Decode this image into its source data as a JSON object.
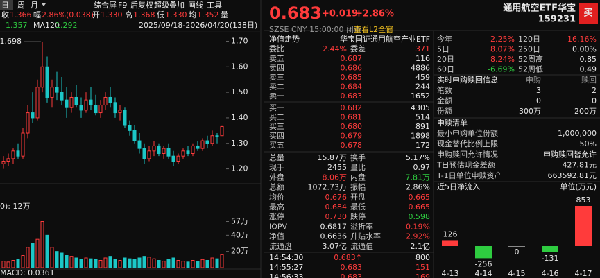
{
  "toolbar": {
    "periods": [
      "日",
      "周",
      "月"
    ],
    "menu": [
      "综合屏",
      "F9",
      "后复权",
      "超级叠加",
      "画线",
      "工具"
    ]
  },
  "quote_bar": [
    [
      "收",
      "1.366"
    ],
    [
      "幅",
      "2.86%(0.038)"
    ],
    [
      "开",
      "1.330"
    ],
    [
      "高",
      "1.368"
    ],
    [
      "低",
      "1.330"
    ],
    [
      "均",
      "1.352"
    ],
    [
      "量"
    ]
  ],
  "ma_bar": [
    "1.357",
    "MA120",
    "1.292"
  ],
  "range": "2025/09/18-2026/04/20(138日)",
  "kline": {
    "type": "candlestick",
    "high_label": "1.698",
    "ylim": [
      1.15,
      1.78
    ],
    "yticks": [
      {
        "value": 1.7,
        "label": "1.70"
      },
      {
        "value": 1.6,
        "label": "1.60"
      },
      {
        "value": 1.5,
        "label": "1.50"
      },
      {
        "value": 1.4,
        "label": "1.40"
      },
      {
        "value": 1.3,
        "label": "1.30"
      },
      {
        "value": 1.2,
        "label": "1.20"
      }
    ],
    "candles": [
      [
        1.22,
        1.25,
        1.2,
        1.23
      ],
      [
        1.23,
        1.26,
        1.21,
        1.24
      ],
      [
        1.24,
        1.28,
        1.22,
        1.27
      ],
      [
        1.27,
        1.3,
        1.24,
        1.25
      ],
      [
        1.25,
        1.36,
        1.24,
        1.34
      ],
      [
        1.34,
        1.45,
        1.32,
        1.42
      ],
      [
        1.42,
        1.5,
        1.38,
        1.4
      ],
      [
        1.4,
        1.55,
        1.39,
        1.52
      ],
      [
        1.52,
        1.698,
        1.5,
        1.6
      ],
      [
        1.6,
        1.64,
        1.46,
        1.48
      ],
      [
        1.48,
        1.55,
        1.44,
        1.52
      ],
      [
        1.52,
        1.58,
        1.47,
        1.5
      ],
      [
        1.5,
        1.56,
        1.45,
        1.47
      ],
      [
        1.47,
        1.52,
        1.4,
        1.44
      ],
      [
        1.44,
        1.5,
        1.42,
        1.48
      ],
      [
        1.48,
        1.53,
        1.44,
        1.45
      ],
      [
        1.45,
        1.48,
        1.4,
        1.43
      ],
      [
        1.43,
        1.5,
        1.42,
        1.47
      ],
      [
        1.47,
        1.52,
        1.43,
        1.45
      ],
      [
        1.45,
        1.49,
        1.41,
        1.42
      ],
      [
        1.42,
        1.47,
        1.4,
        1.45
      ],
      [
        1.45,
        1.5,
        1.43,
        1.48
      ],
      [
        1.48,
        1.52,
        1.44,
        1.46
      ],
      [
        1.46,
        1.48,
        1.4,
        1.42
      ],
      [
        1.42,
        1.45,
        1.39,
        1.43
      ],
      [
        1.43,
        1.44,
        1.36,
        1.37
      ],
      [
        1.37,
        1.39,
        1.33,
        1.35
      ],
      [
        1.35,
        1.37,
        1.3,
        1.31
      ],
      [
        1.31,
        1.34,
        1.26,
        1.28
      ],
      [
        1.28,
        1.3,
        1.22,
        1.24
      ],
      [
        1.24,
        1.29,
        1.23,
        1.27
      ],
      [
        1.27,
        1.31,
        1.25,
        1.29
      ],
      [
        1.29,
        1.3,
        1.25,
        1.26
      ],
      [
        1.26,
        1.29,
        1.24,
        1.28
      ],
      [
        1.28,
        1.3,
        1.24,
        1.25
      ],
      [
        1.25,
        1.27,
        1.21,
        1.23
      ],
      [
        1.23,
        1.26,
        1.22,
        1.25
      ],
      [
        1.25,
        1.28,
        1.24,
        1.27
      ],
      [
        1.27,
        1.29,
        1.25,
        1.26
      ],
      [
        1.26,
        1.3,
        1.25,
        1.29
      ],
      [
        1.29,
        1.31,
        1.27,
        1.28
      ],
      [
        1.28,
        1.32,
        1.27,
        1.31
      ],
      [
        1.31,
        1.33,
        1.28,
        1.3
      ],
      [
        1.3,
        1.35,
        1.29,
        1.33
      ],
      [
        1.33,
        1.34,
        1.3,
        1.328
      ],
      [
        1.33,
        1.368,
        1.33,
        1.366
      ]
    ]
  },
  "volume": {
    "label": "0): 12万",
    "ylim": [
      0,
      60
    ],
    "yticks": [
      {
        "value": 57,
        "label": "57万"
      },
      {
        "value": 40,
        "label": "40万"
      },
      {
        "value": 20,
        "label": "20万"
      }
    ],
    "values": [
      8,
      7,
      9,
      10,
      15,
      25,
      30,
      35,
      57,
      40,
      25,
      20,
      18,
      15,
      14,
      12,
      10,
      12,
      11,
      10,
      9,
      12,
      14,
      10,
      9,
      12,
      11,
      10,
      12,
      14,
      13,
      11,
      9,
      8,
      10,
      12,
      9,
      8,
      7,
      9,
      8,
      10,
      9,
      12,
      11,
      16
    ]
  },
  "macd": "MACD: 0.0361",
  "quote": {
    "price": "0.683",
    "change": "+0.019",
    "pct": "+2.86%",
    "name": "通用航空ETF华宝",
    "code": "159231",
    "buy": "买",
    "status": "SZSE  CNY  15:00:00  闭市",
    "l2": "查看L2全窗"
  },
  "orderbook": {
    "tabs": [
      "净值走势",
      "华宝国证通用航空产业ETF"
    ],
    "ratio": [
      "委比",
      "2.44%",
      "委差",
      "371"
    ],
    "asks": [
      [
        "卖五",
        "0.687",
        "116"
      ],
      [
        "卖四",
        "0.686",
        "4886"
      ],
      [
        "卖三",
        "0.685",
        "459"
      ],
      [
        "卖二",
        "0.684",
        "244"
      ],
      [
        "卖一",
        "0.683",
        "1652"
      ]
    ],
    "bids": [
      [
        "买一",
        "0.682",
        "4305"
      ],
      [
        "买二",
        "0.681",
        "514"
      ],
      [
        "买三",
        "0.680",
        "891"
      ],
      [
        "买四",
        "0.679",
        "1898"
      ],
      [
        "买五",
        "0.678",
        "172"
      ]
    ]
  },
  "stats": [
    [
      "总量",
      "15.87万",
      "换手",
      "5.17%"
    ],
    [
      "现手",
      "2455",
      "量比",
      "0.97"
    ],
    [
      "外盘",
      "8.06万",
      "内盘",
      "7.81万"
    ],
    [
      "总额",
      "1072.73万",
      "振幅",
      "2.86%"
    ],
    [
      "均价",
      "0.676",
      "开盘",
      "0.665"
    ],
    [
      "最高",
      "0.684",
      "最低",
      "0.665"
    ],
    [
      "涨停",
      "0.730",
      "跌停",
      "0.598"
    ],
    [
      "IOPV",
      "0.6817",
      "溢折率",
      "0.19%"
    ],
    [
      "净值",
      "0.6636",
      "升贴水率",
      "2.92%"
    ],
    [
      "流通盘",
      "3.07亿",
      "流通值",
      "2.1亿"
    ]
  ],
  "ticks": [
    [
      "14:54:30",
      "0.683↑",
      "800"
    ],
    [
      "14:55:27",
      "0.683",
      "151"
    ],
    [
      "14:56:33",
      "0.683",
      "169"
    ]
  ],
  "performance": [
    [
      "今年",
      "2.25%",
      "120日",
      "16.16%"
    ],
    [
      "5日",
      "8.07%",
      "250日",
      "0.00%"
    ],
    [
      "20日",
      "8.24%",
      "52周高",
      "0.85"
    ],
    [
      "60日",
      "-6.69%",
      "52周低",
      "0.49"
    ]
  ],
  "realtime": {
    "title": "实时申购赎回信息",
    "headers": [
      "申购",
      "赎回"
    ],
    "rows": [
      [
        "笔数",
        "3",
        "2"
      ],
      [
        "金额",
        "0",
        "0"
      ],
      [
        "份额",
        "300万",
        "200万"
      ]
    ]
  },
  "creation_list": {
    "title": "申赎清单",
    "rows": [
      [
        "最小申购单位份额",
        "1,000,000"
      ],
      [
        "现金替代比例上限",
        "50%"
      ],
      [
        "申购赎回允许情况",
        "申购赎回皆允许"
      ],
      [
        "T日预估现金差额",
        "427.81元"
      ],
      [
        "T-1日单位申赎资产",
        "663592.81元"
      ]
    ]
  },
  "net_inflow": {
    "type": "bar",
    "title": "近5日净流入",
    "unit": "单位(万元)",
    "categories": [
      "4-13",
      "4-14",
      "4-15",
      "4-16",
      "4-17"
    ],
    "values": [
      126,
      -256,
      0,
      -131,
      853
    ]
  }
}
